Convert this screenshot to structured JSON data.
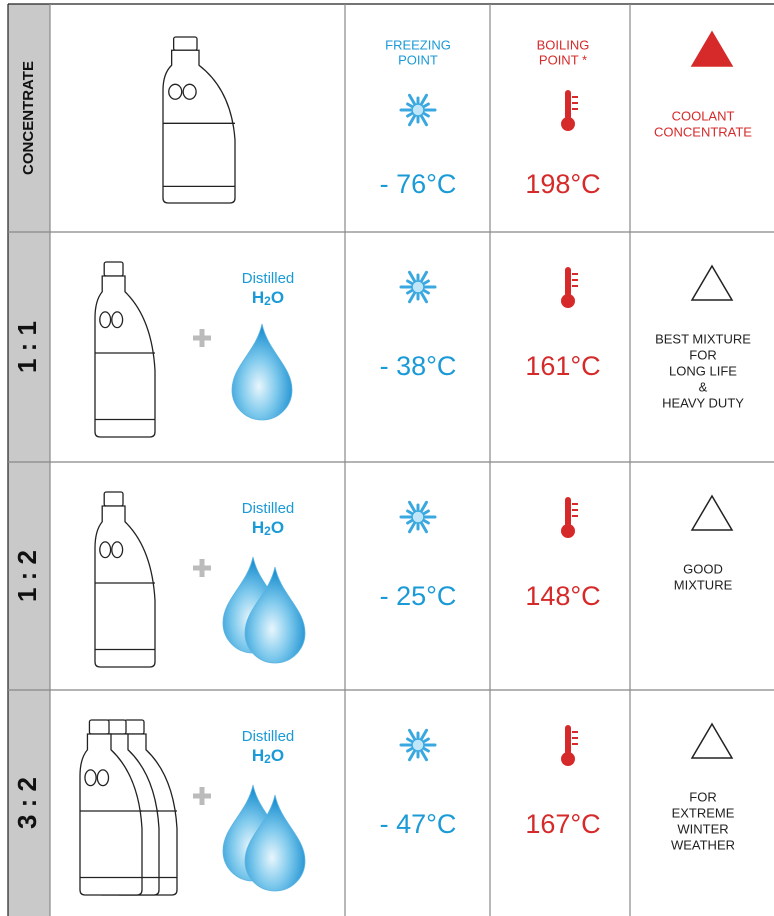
{
  "header": {
    "freezing": [
      "FREEZING",
      "POINT"
    ],
    "boiling": [
      "BOILING",
      "POINT *"
    ]
  },
  "rows": [
    {
      "label": "CONCENTRATE",
      "freezing": "- 76°C",
      "boiling": "198°C",
      "note": [
        "COOLANT",
        "CONCENTRATE"
      ]
    },
    {
      "label": "1 : 1",
      "water": {
        "word": "Distilled",
        "formula": [
          "H",
          "2",
          "O"
        ]
      },
      "freezing": "- 38°C",
      "boiling": "161°C",
      "note": [
        "BEST MIXTURE",
        "FOR",
        "LONG LIFE",
        "&",
        "HEAVY DUTY"
      ]
    },
    {
      "label": "1 : 2",
      "water": {
        "word": "Distilled",
        "formula": [
          "H",
          "2",
          "O"
        ]
      },
      "freezing": "- 25°C",
      "boiling": "148°C",
      "note": [
        "GOOD",
        "MIXTURE"
      ]
    },
    {
      "label": "3 : 2",
      "water": {
        "word": "Distilled",
        "formula": [
          "H",
          "2",
          "O"
        ]
      },
      "freezing": "- 47°C",
      "boiling": "167°C",
      "note": [
        "FOR",
        "EXTREME",
        "WINTER",
        "WEATHER"
      ]
    }
  ]
}
